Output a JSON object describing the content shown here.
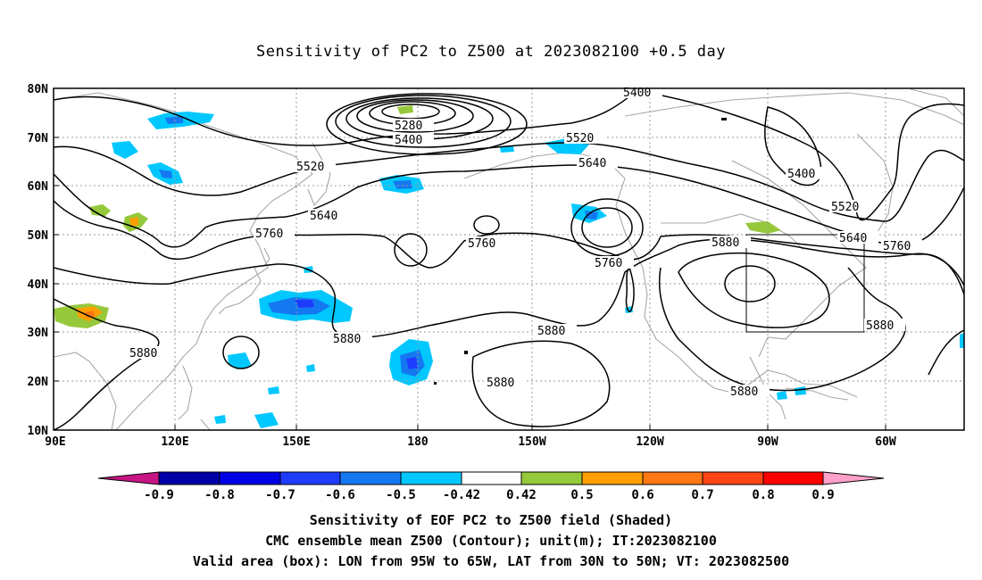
{
  "title": "Sensitivity of PC2 to Z500 at 2023082100 +0.5 day",
  "lat_ticks": [
    "80N",
    "70N",
    "60N",
    "50N",
    "40N",
    "30N",
    "20N",
    "10N"
  ],
  "lon_ticks": [
    "90E",
    "120E",
    "150E",
    "180",
    "150W",
    "120W",
    "90W",
    "60W"
  ],
  "contour_labels": [
    "5280",
    "5400",
    "5400",
    "5400",
    "5520",
    "5520",
    "5520",
    "5640",
    "5640",
    "5640",
    "5760",
    "5760",
    "5760",
    "5760",
    "5880",
    "5880",
    "5880",
    "5880",
    "5880",
    "5880",
    "5880"
  ],
  "colorbar": {
    "labels": [
      "-0.9",
      "-0.8",
      "-0.7",
      "-0.6",
      "-0.5",
      "-0.42",
      "0.42",
      "0.5",
      "0.6",
      "0.7",
      "0.8",
      "0.9"
    ],
    "colors": [
      "#c71585",
      "#0000a8",
      "#0000e6",
      "#1e3cff",
      "#1478f0",
      "#00c8ff",
      "#ffffff",
      "#96c83c",
      "#ffa000",
      "#ff7814",
      "#ff4614",
      "#ff0000",
      "#ffa0c8"
    ]
  },
  "shading_colors": {
    "blue_light": "#00c8ff",
    "blue_mid": "#1478f0",
    "blue_dark": "#1e3cff",
    "green": "#96c83c",
    "orange": "#ffa000",
    "coast": "#a8a8a8"
  },
  "valid_box": {
    "lon_west": "95W",
    "lon_east": "65W",
    "lat_south": "30N",
    "lat_north": "50N"
  },
  "caption": {
    "line1": "Sensitivity of EOF PC2 to Z500 field (Shaded)",
    "line2": "CMC ensemble mean Z500 (Contour); unit(m); IT:2023082100",
    "line3": "Valid area (box): LON from 95W to 65W, LAT from 30N to 50N; VT: 2023082500"
  }
}
